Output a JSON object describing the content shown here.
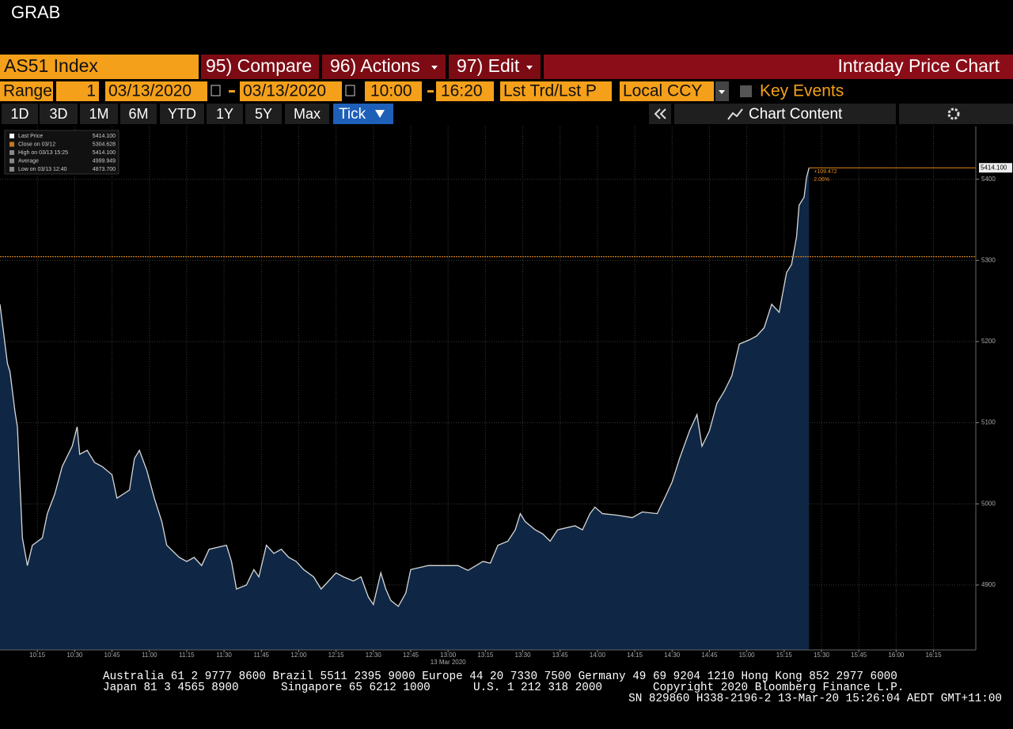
{
  "window_title": "GRAB",
  "toolbar": {
    "security": "AS51 Index",
    "menus": [
      "95) Compare",
      "96) Actions",
      "97) Edit"
    ],
    "title": "Intraday Price Chart"
  },
  "range_bar": {
    "label": "Range",
    "period": "1",
    "start_date": "03/13/2020",
    "end_date": "03/13/2020",
    "start_time": "10:00",
    "end_time": "16:20",
    "field": "Lst Trd/Lst P",
    "currency": "Local CCY",
    "key_events": "Key Events"
  },
  "period_buttons": [
    "1D",
    "3D",
    "1M",
    "6M",
    "YTD",
    "1Y",
    "5Y",
    "Max"
  ],
  "selected_period": "Tick",
  "chart_content": "Chart Content",
  "chart_data": {
    "type": "area",
    "x": [
      "10:00",
      "10:03",
      "10:04",
      "10:06",
      "10:07",
      "10:09",
      "10:11",
      "10:13",
      "10:17",
      "10:19",
      "10:22",
      "10:25",
      "10:29",
      "10:31",
      "10:32",
      "10:35",
      "10:38",
      "10:41",
      "10:45",
      "10:47",
      "10:52",
      "10:54",
      "10:56",
      "10:59",
      "11:02",
      "11:05",
      "11:07",
      "11:12",
      "11:15",
      "11:18",
      "11:21",
      "11:24",
      "11:31",
      "11:33",
      "11:35",
      "11:39",
      "11:42",
      "11:44",
      "11:47",
      "11:50",
      "11:53",
      "11:56",
      "11:59",
      "12:02",
      "12:06",
      "12:09",
      "12:12",
      "12:15",
      "12:18",
      "12:22",
      "12:25",
      "12:28",
      "12:30",
      "12:33",
      "12:35",
      "12:37",
      "12:40",
      "12:43",
      "12:45",
      "12:52",
      "12:58",
      "13:04",
      "13:08",
      "13:14",
      "13:17",
      "13:20",
      "13:24",
      "13:27",
      "13:29",
      "13:31",
      "13:35",
      "13:38",
      "13:41",
      "13:44",
      "13:51",
      "13:54",
      "13:57",
      "13:59",
      "14:02",
      "14:08",
      "14:14",
      "14:18",
      "14:24",
      "14:27",
      "14:30",
      "14:33",
      "14:37",
      "14:40",
      "14:42",
      "14:45",
      "14:48",
      "14:51",
      "14:54",
      "14:57",
      "15:01",
      "15:04",
      "15:07",
      "15:10",
      "15:13",
      "15:16",
      "15:18",
      "15:20",
      "15:21",
      "15:23",
      "15:24",
      "15:25"
    ],
    "series": [
      {
        "name": "Last Price",
        "color": "#d8d8d8",
        "area_color": "#0f2744",
        "values": [
          5246,
          5173,
          5163,
          5114,
          5095,
          4958,
          4924,
          4949,
          4958,
          4988,
          5012,
          5046,
          5071,
          5095,
          5061,
          5066,
          5051,
          5046,
          5036,
          5007,
          5017,
          5056,
          5066,
          5041,
          5007,
          4978,
          4949,
          4934,
          4929,
          4934,
          4924,
          4944,
          4949,
          4929,
          4895,
          4900,
          4919,
          4910,
          4949,
          4939,
          4944,
          4934,
          4929,
          4919,
          4910,
          4895,
          4905,
          4915,
          4910,
          4905,
          4910,
          4885,
          4876,
          4915,
          4895,
          4881,
          4873.7,
          4890,
          4919,
          4924,
          4924,
          4924,
          4918,
          4929,
          4927,
          4949,
          4954,
          4968,
          4988,
          4978,
          4968,
          4963,
          4954,
          4968,
          4973,
          4968,
          4988,
          4996,
          4988,
          4986,
          4983,
          4990,
          4988,
          5007,
          5027,
          5056,
          5090,
          5110,
          5071,
          5090,
          5124,
          5139,
          5158,
          5197,
          5202,
          5207,
          5217,
          5246,
          5236,
          5285,
          5295,
          5329,
          5368,
          5378,
          5402,
          5414.1
        ],
        "last_label": "5414.100"
      }
    ],
    "stats": [
      {
        "name": "Close on 03/12",
        "label": "5304.628"
      },
      {
        "name": "High on 03/13 15:25",
        "label": "5414.100"
      },
      {
        "name": "Average",
        "label": "4999.949"
      },
      {
        "name": "Low on 03/13 12:40",
        "label": "4873.700"
      }
    ],
    "close_line": {
      "value": 5304.628,
      "color": "#c67a20"
    },
    "last_change": {
      "change": "+109.472",
      "percent": "2.06%",
      "color": "#e8891c"
    },
    "date_label": "13 Mar 2020",
    "xlim": [
      "10:00",
      "16:32"
    ],
    "xticks": [
      "10:15",
      "10:30",
      "10:45",
      "11:00",
      "11:15",
      "11:30",
      "11:45",
      "12:00",
      "12:15",
      "12:30",
      "12:45",
      "13:00",
      "13:15",
      "13:30",
      "13:45",
      "14:00",
      "14:15",
      "14:30",
      "14:45",
      "15:00",
      "15:15",
      "15:30",
      "15:45",
      "16:00",
      "16:15"
    ],
    "ylim": [
      4820,
      5465
    ],
    "yticks": [
      4900,
      5000,
      5100,
      5200,
      5300,
      5400
    ],
    "grid": true
  },
  "footer": {
    "line1": "Australia 61 2 9777 8600 Brazil 5511 2395 9000 Europe 44 20 7330 7500 Germany 49 69 9204 1210 Hong Kong 852 2977 6000",
    "line2": [
      "Japan 81 3 4565 8900",
      "Singapore 65 6212 1000",
      "U.S. 1 212 318 2000",
      "Copyright 2020 Bloomberg Finance L.P."
    ],
    "line3": "SN 829860 H338-2196-2 13-Mar-20 15:26:04 AEDT GMT+11:00"
  }
}
